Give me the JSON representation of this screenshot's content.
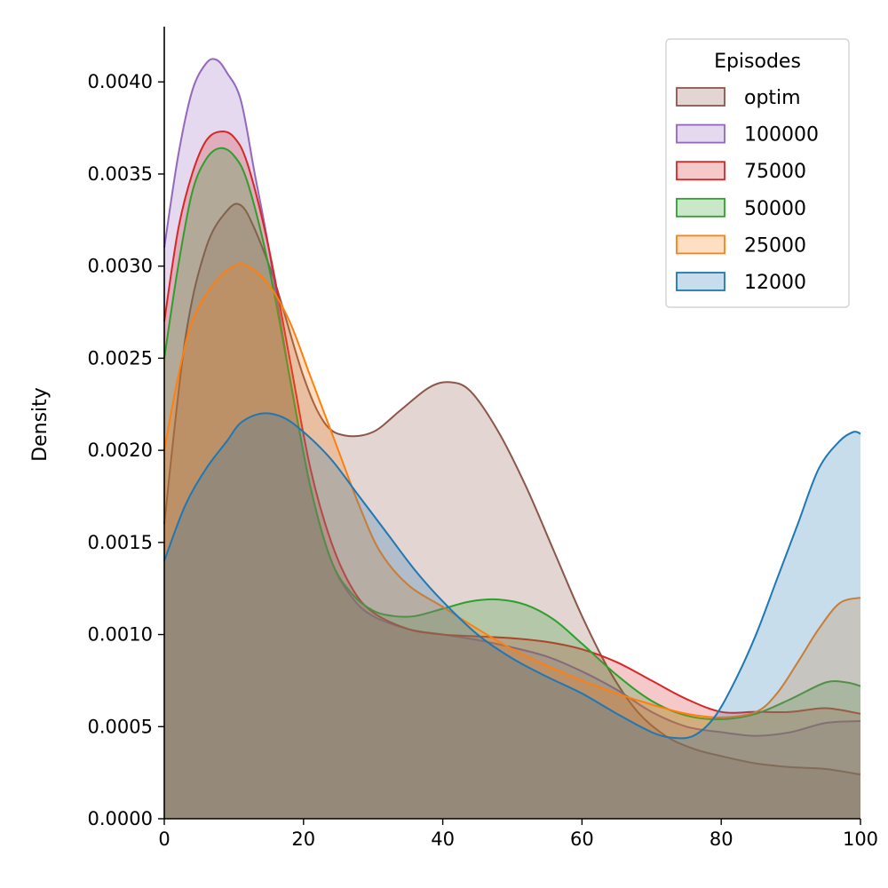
{
  "chart_data": {
    "type": "area",
    "title": "",
    "xlabel": "",
    "ylabel": "Density",
    "xlim": [
      0,
      100
    ],
    "ylim": [
      0,
      0.0043
    ],
    "x_ticks": [
      0,
      20,
      40,
      60,
      80,
      100
    ],
    "x_tick_labels": [
      "0",
      "20",
      "40",
      "60",
      "80",
      "100"
    ],
    "y_ticks": [
      0,
      0.0005,
      0.001,
      0.0015,
      0.002,
      0.0025,
      0.003,
      0.0035,
      0.004
    ],
    "y_tick_labels": [
      "0.0000",
      "0.0005",
      "0.0010",
      "0.0015",
      "0.0020",
      "0.0025",
      "0.0030",
      "0.0035",
      "0.0040"
    ],
    "grid": false,
    "legend": {
      "title": "Episodes",
      "position": "top-right"
    },
    "series": [
      {
        "name": "optim",
        "color": "#8c564b",
        "points": [
          [
            0,
            0.0016
          ],
          [
            3,
            0.0026
          ],
          [
            6,
            0.0031
          ],
          [
            9,
            0.0033
          ],
          [
            11,
            0.00333
          ],
          [
            13,
            0.0032
          ],
          [
            16,
            0.0029
          ],
          [
            20,
            0.0024
          ],
          [
            23,
            0.00215
          ],
          [
            26,
            0.00208
          ],
          [
            30,
            0.0021
          ],
          [
            34,
            0.00222
          ],
          [
            38,
            0.00234
          ],
          [
            41,
            0.00237
          ],
          [
            44,
            0.00232
          ],
          [
            48,
            0.0021
          ],
          [
            52,
            0.0018
          ],
          [
            56,
            0.00145
          ],
          [
            60,
            0.0011
          ],
          [
            64,
            0.0008
          ],
          [
            68,
            0.00058
          ],
          [
            72,
            0.00045
          ],
          [
            76,
            0.00038
          ],
          [
            80,
            0.00034
          ],
          [
            85,
            0.0003
          ],
          [
            90,
            0.00028
          ],
          [
            95,
            0.00027
          ],
          [
            100,
            0.00024
          ]
        ]
      },
      {
        "name": "100000",
        "color": "#9467bd",
        "points": [
          [
            0,
            0.0031
          ],
          [
            2,
            0.0036
          ],
          [
            4,
            0.00395
          ],
          [
            6,
            0.0041
          ],
          [
            7.5,
            0.00412
          ],
          [
            9,
            0.00405
          ],
          [
            11,
            0.0039
          ],
          [
            13,
            0.0035
          ],
          [
            15,
            0.0031
          ],
          [
            18,
            0.0024
          ],
          [
            21,
            0.0018
          ],
          [
            24,
            0.0014
          ],
          [
            27,
            0.0012
          ],
          [
            30,
            0.0011
          ],
          [
            35,
            0.00103
          ],
          [
            40,
            0.001
          ],
          [
            45,
            0.00097
          ],
          [
            50,
            0.00093
          ],
          [
            55,
            0.00088
          ],
          [
            60,
            0.0008
          ],
          [
            65,
            0.0007
          ],
          [
            70,
            0.00058
          ],
          [
            75,
            0.0005
          ],
          [
            80,
            0.00047
          ],
          [
            85,
            0.00045
          ],
          [
            90,
            0.00047
          ],
          [
            95,
            0.00052
          ],
          [
            100,
            0.00053
          ]
        ]
      },
      {
        "name": "75000",
        "color": "#d62728",
        "points": [
          [
            0,
            0.0027
          ],
          [
            2,
            0.0032
          ],
          [
            4,
            0.0035
          ],
          [
            6,
            0.00368
          ],
          [
            8,
            0.00373
          ],
          [
            10,
            0.0037
          ],
          [
            12,
            0.00355
          ],
          [
            15,
            0.0031
          ],
          [
            18,
            0.0025
          ],
          [
            21,
            0.0019
          ],
          [
            24,
            0.0015
          ],
          [
            27,
            0.00125
          ],
          [
            30,
            0.00112
          ],
          [
            35,
            0.00103
          ],
          [
            40,
            0.001
          ],
          [
            45,
            0.00099
          ],
          [
            50,
            0.00098
          ],
          [
            55,
            0.00096
          ],
          [
            60,
            0.00092
          ],
          [
            65,
            0.00085
          ],
          [
            70,
            0.00075
          ],
          [
            75,
            0.00065
          ],
          [
            80,
            0.00058
          ],
          [
            85,
            0.00058
          ],
          [
            90,
            0.00058
          ],
          [
            95,
            0.0006
          ],
          [
            100,
            0.00057
          ]
        ]
      },
      {
        "name": "50000",
        "color": "#2ca02c",
        "points": [
          [
            0,
            0.0025
          ],
          [
            2,
            0.003
          ],
          [
            4,
            0.0034
          ],
          [
            6,
            0.00358
          ],
          [
            8,
            0.00364
          ],
          [
            10,
            0.0036
          ],
          [
            12,
            0.00345
          ],
          [
            15,
            0.003
          ],
          [
            18,
            0.0024
          ],
          [
            21,
            0.0018
          ],
          [
            24,
            0.0014
          ],
          [
            27,
            0.00122
          ],
          [
            30,
            0.00113
          ],
          [
            33,
            0.0011
          ],
          [
            36,
            0.0011
          ],
          [
            40,
            0.00114
          ],
          [
            44,
            0.00118
          ],
          [
            48,
            0.00119
          ],
          [
            52,
            0.00116
          ],
          [
            56,
            0.00108
          ],
          [
            60,
            0.00095
          ],
          [
            65,
            0.00078
          ],
          [
            70,
            0.00064
          ],
          [
            75,
            0.00056
          ],
          [
            80,
            0.00054
          ],
          [
            85,
            0.00057
          ],
          [
            90,
            0.00065
          ],
          [
            95,
            0.00074
          ],
          [
            98,
            0.00074
          ],
          [
            100,
            0.00072
          ]
        ]
      },
      {
        "name": "25000",
        "color": "#ff7f0e",
        "points": [
          [
            0,
            0.002
          ],
          [
            2,
            0.0024
          ],
          [
            4,
            0.0027
          ],
          [
            7,
            0.0029
          ],
          [
            10,
            0.003
          ],
          [
            12,
            0.003
          ],
          [
            15,
            0.0029
          ],
          [
            18,
            0.0027
          ],
          [
            21,
            0.0024
          ],
          [
            25,
            0.002
          ],
          [
            28,
            0.0017
          ],
          [
            31,
            0.00145
          ],
          [
            35,
            0.00127
          ],
          [
            40,
            0.00115
          ],
          [
            45,
            0.00103
          ],
          [
            50,
            0.00092
          ],
          [
            55,
            0.00083
          ],
          [
            60,
            0.00075
          ],
          [
            65,
            0.00068
          ],
          [
            70,
            0.00062
          ],
          [
            75,
            0.00057
          ],
          [
            80,
            0.00055
          ],
          [
            85,
            0.00058
          ],
          [
            88,
            0.00068
          ],
          [
            91,
            0.00085
          ],
          [
            94,
            0.00103
          ],
          [
            97,
            0.00117
          ],
          [
            100,
            0.0012
          ]
        ]
      },
      {
        "name": "12000",
        "color": "#1f77b4",
        "points": [
          [
            0,
            0.0014
          ],
          [
            3,
            0.0017
          ],
          [
            6,
            0.0019
          ],
          [
            9,
            0.00205
          ],
          [
            11,
            0.00215
          ],
          [
            14,
            0.0022
          ],
          [
            17,
            0.00218
          ],
          [
            20,
            0.0021
          ],
          [
            24,
            0.00195
          ],
          [
            28,
            0.00175
          ],
          [
            32,
            0.00155
          ],
          [
            36,
            0.00135
          ],
          [
            40,
            0.00118
          ],
          [
            45,
            0.001
          ],
          [
            50,
            0.00087
          ],
          [
            55,
            0.00077
          ],
          [
            60,
            0.00068
          ],
          [
            65,
            0.00057
          ],
          [
            70,
            0.00047
          ],
          [
            73,
            0.00044
          ],
          [
            76,
            0.00045
          ],
          [
            79,
            0.00055
          ],
          [
            82,
            0.00075
          ],
          [
            85,
            0.001
          ],
          [
            88,
            0.0013
          ],
          [
            91,
            0.0016
          ],
          [
            94,
            0.0019
          ],
          [
            97,
            0.00205
          ],
          [
            99,
            0.0021
          ],
          [
            100,
            0.00209
          ]
        ]
      }
    ]
  }
}
